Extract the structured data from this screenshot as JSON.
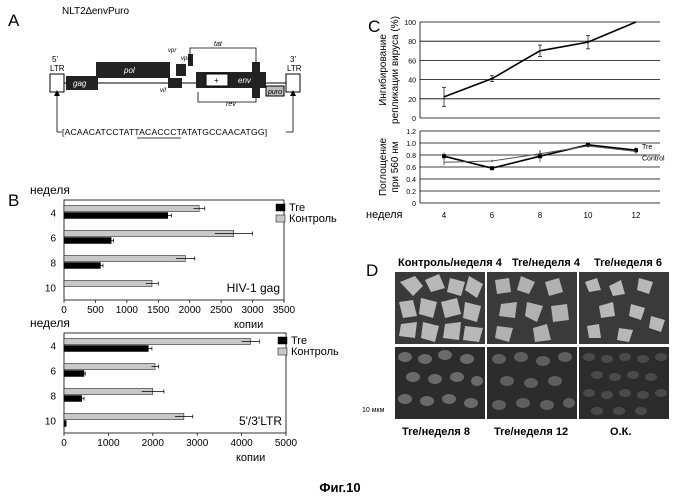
{
  "panel_a": {
    "letter": "A",
    "construct_title": "NLT2∆envPuro",
    "ltr5": "5'\nLTR",
    "ltr3": "3'\nLTR",
    "genes": [
      "gag",
      "pol",
      "env",
      "puro"
    ],
    "small_genes": [
      "vif",
      "vpr",
      "vpu",
      "tat",
      "rev"
    ],
    "sequence": "ACAACATCCTATTACACCCTATATGCCAACATGG",
    "underlined_part": "ACACCCT"
  },
  "panel_b": {
    "letter": "B",
    "charts": [
      {
        "type": "bar",
        "orientation": "horizontal",
        "title": "HIV-1 gag",
        "ylabel": "неделя",
        "xlabel": "копии",
        "xlim": [
          0,
          3500
        ],
        "xticks": [
          0,
          500,
          1000,
          1500,
          2000,
          2500,
          3000,
          3500
        ],
        "categories": [
          "4",
          "6",
          "8",
          "10"
        ],
        "series": [
          {
            "name": "Tre",
            "color": "#000000",
            "values": [
              1650,
              750,
              580,
              0
            ],
            "errors": [
              60,
              40,
              40,
              0
            ]
          },
          {
            "name": "Контроль",
            "color": "#c8c8c8",
            "values": [
              2150,
              2700,
              1930,
              1400
            ],
            "errors": [
              90,
              300,
              150,
              100
            ]
          }
        ]
      },
      {
        "type": "bar",
        "orientation": "horizontal",
        "title": "5'/3'LTR",
        "ylabel": "неделя",
        "xlabel": "копии",
        "xlim": [
          0,
          5000
        ],
        "xticks": [
          0,
          1000,
          2000,
          3000,
          4000,
          5000
        ],
        "categories": [
          "4",
          "6",
          "8",
          "10"
        ],
        "series": [
          {
            "name": "Tre",
            "color": "#000000",
            "values": [
              1900,
              450,
              400,
              50
            ],
            "errors": [
              80,
              30,
              50,
              0
            ]
          },
          {
            "name": "Контроль",
            "color": "#c8c8c8",
            "values": [
              4200,
              2050,
              2000,
              2700
            ],
            "errors": [
              200,
              80,
              250,
              200
            ]
          }
        ]
      }
    ]
  },
  "panel_c": {
    "letter": "C",
    "xlabel": "неделя",
    "categories": [
      "4",
      "6",
      "8",
      "10",
      "12"
    ],
    "top": {
      "type": "line",
      "ylabel": "Ингибирование\nрепликации вируса (%)",
      "ylim": [
        0,
        100
      ],
      "yticks": [
        0,
        20,
        40,
        60,
        80,
        100
      ],
      "values": [
        22,
        41,
        70,
        79,
        100
      ],
      "errors": [
        10,
        3,
        6,
        7,
        0
      ]
    },
    "bottom": {
      "type": "line",
      "ylabel": "Поглощение\nпри 560 нм",
      "ylim": [
        0,
        1.2
      ],
      "yticks": [
        0,
        0.2,
        0.4,
        0.6,
        0.8,
        1.0,
        1.2
      ],
      "series": [
        {
          "name": "Tre",
          "values": [
            0.78,
            0.58,
            0.78,
            0.97,
            0.88
          ],
          "errors": [
            0.06,
            0.03,
            0.1,
            0.04,
            0.05
          ]
        },
        {
          "name": "Control",
          "values": [
            0.68,
            0.7,
            0.82,
            0.95,
            0.86
          ],
          "errors": [
            0.05,
            0.02,
            0.06,
            0.03,
            0.04
          ]
        }
      ]
    }
  },
  "panel_d": {
    "letter": "D",
    "top_labels": [
      "Контроль/неделя 4",
      "Tre/неделя 4",
      "Tre/неделя 6"
    ],
    "bottom_labels": [
      "Tre/неделя 8",
      "Tre/неделя 12",
      "О.К."
    ],
    "scale_bar": "10 мкм"
  },
  "caption": "Фиг.10"
}
